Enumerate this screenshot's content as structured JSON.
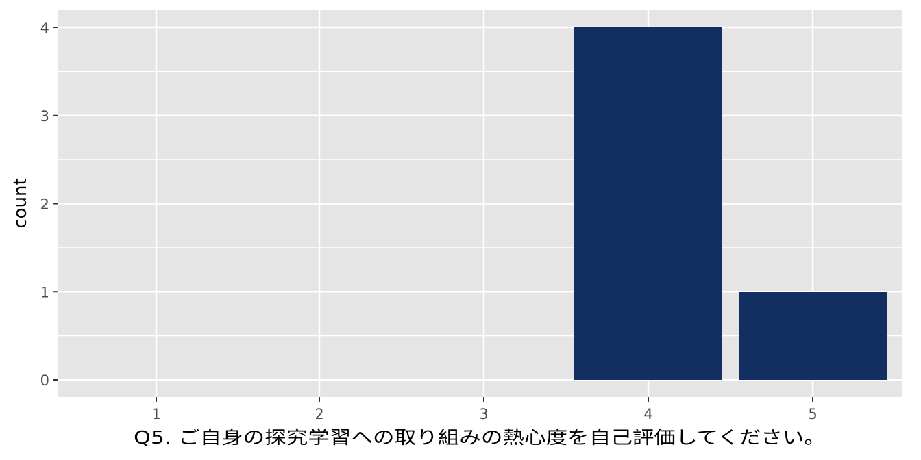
{
  "chart_data": {
    "type": "bar",
    "categories": [
      "1",
      "2",
      "3",
      "4",
      "5"
    ],
    "values": [
      0,
      0,
      0,
      4,
      1
    ],
    "title": "",
    "xlabel": "Q5. ご自身の探究学習への取り組みの熱心度を自己評価してください。",
    "ylabel": "count",
    "ylim": [
      0,
      4
    ],
    "yticks": [
      "0",
      "1",
      "2",
      "3",
      "4"
    ],
    "grid": true,
    "bar_color": "#132f61",
    "panel_background": "#e5e5e5",
    "gridline_color": "#ffffff"
  }
}
